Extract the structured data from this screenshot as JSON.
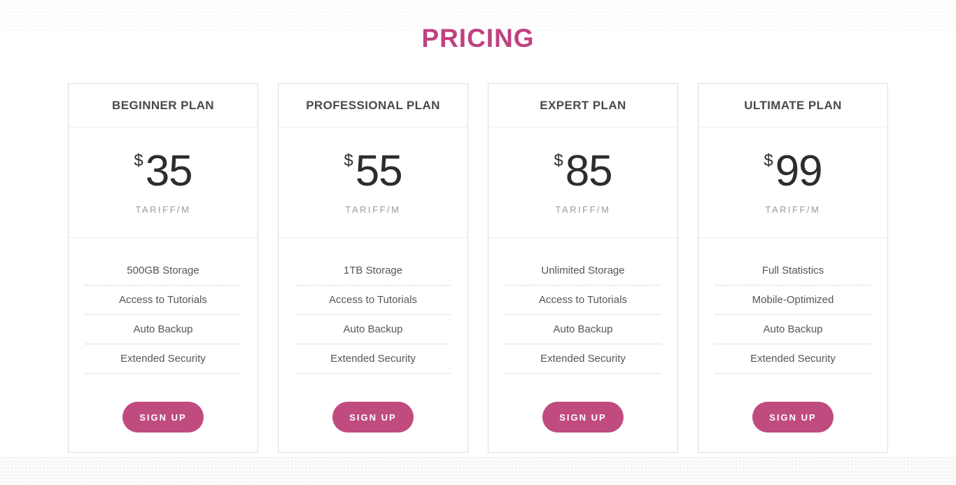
{
  "page": {
    "title": "PRICING"
  },
  "theme": {
    "accent_pink": "#c04b7e",
    "heading_pink": "#bf4180",
    "plan_title_gray": "#4a4a4a",
    "price_black": "#2d2d2d",
    "feature_gray": "#565656",
    "muted_gray": "#9a9a9a",
    "card_border": "#dcdcdc"
  },
  "plans": [
    {
      "name": "BEGINNER PLAN",
      "currency": "$",
      "price": "35",
      "period": "TARIFF/M",
      "features": [
        "500GB Storage",
        "Access to Tutorials",
        "Auto Backup",
        "Extended Security"
      ],
      "cta": "SIGN UP"
    },
    {
      "name": "PROFESSIONAL PLAN",
      "currency": "$",
      "price": "55",
      "period": "TARIFF/M",
      "features": [
        "1TB Storage",
        "Access to Tutorials",
        "Auto Backup",
        "Extended Security"
      ],
      "cta": "SIGN UP"
    },
    {
      "name": "EXPERT PLAN",
      "currency": "$",
      "price": "85",
      "period": "TARIFF/M",
      "features": [
        "Unlimited Storage",
        "Access to Tutorials",
        "Auto Backup",
        "Extended Security"
      ],
      "cta": "SIGN UP"
    },
    {
      "name": "ULTIMATE PLAN",
      "currency": "$",
      "price": "99",
      "period": "TARIFF/M",
      "features": [
        "Full Statistics",
        "Mobile-Optimized",
        "Auto Backup",
        "Extended Security"
      ],
      "cta": "SIGN UP"
    }
  ]
}
